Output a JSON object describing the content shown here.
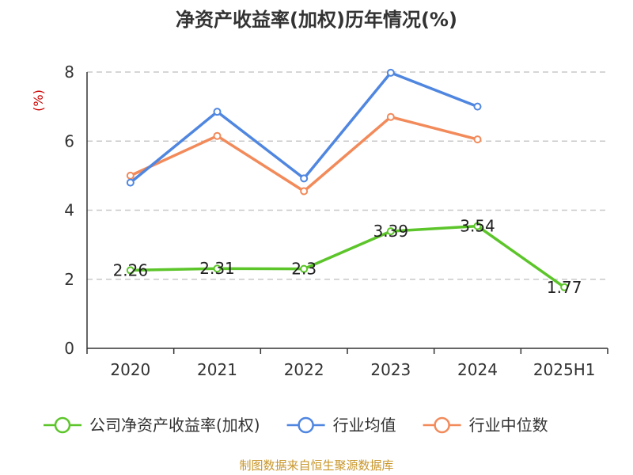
{
  "chart_data": {
    "type": "line",
    "title": "净资产收益率(加权)历年情况(%)",
    "ylabel": "(%)",
    "xlabel": "",
    "categories": [
      "2020",
      "2021",
      "2022",
      "2023",
      "2024",
      "2025H1"
    ],
    "ylim": [
      0,
      8
    ],
    "yticks": [
      0,
      2,
      4,
      6,
      8
    ],
    "grid": true,
    "legend_position": "bottom",
    "series": [
      {
        "name": "公司净资产收益率(加权)",
        "color": "#5cc52a",
        "values": [
          2.26,
          2.31,
          2.3,
          3.39,
          3.54,
          1.77
        ],
        "labels": [
          "2.26",
          "2.31",
          "2.3",
          "3.39",
          "3.54",
          "1.77"
        ]
      },
      {
        "name": "行业均值",
        "color": "#4f86e0",
        "values": [
          4.8,
          6.85,
          4.92,
          7.98,
          7.0,
          null
        ]
      },
      {
        "name": "行业中位数",
        "color": "#f28a5a",
        "values": [
          5.0,
          6.15,
          4.55,
          6.7,
          6.05,
          null
        ]
      }
    ]
  },
  "source": "制图数据来自恒生聚源数据库"
}
